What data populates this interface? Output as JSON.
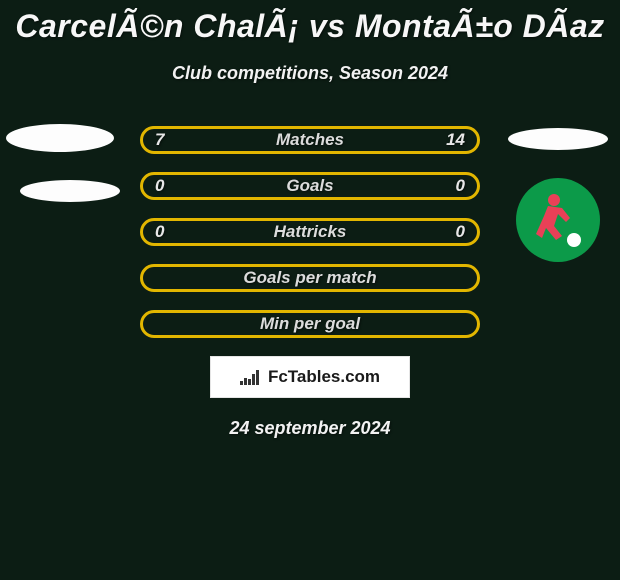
{
  "title": "CarcelÃ©n ChalÃ¡ vs MontaÃ±o DÃ­az",
  "subtitle": "Club competitions, Season 2024",
  "date": "24 september 2024",
  "colors": {
    "background": "#0c1d14",
    "title_color": "#f7f7f7",
    "subtitle_color": "#f2f2f2",
    "accent": "#e2b600",
    "pill_label_color": "#dcdcdc",
    "pill_value_color": "#e8e8e8",
    "logo_bg": "#ffffff",
    "logo_text": "#1a1a1a",
    "badge_bg": "#0c9a49",
    "badge_figure": "#e94057",
    "badge_figure2": "#ffffff"
  },
  "typography": {
    "title_fontsize": 32,
    "subtitle_fontsize": 18,
    "pill_label_fontsize": 17,
    "pill_value_fontsize": 17,
    "date_fontsize": 18
  },
  "layout": {
    "pill_width": 340,
    "pill_height": 28,
    "pill_border_width": 3,
    "row_gap": 18
  },
  "rows": [
    {
      "label": "Matches",
      "left": "7",
      "right": "14"
    },
    {
      "label": "Goals",
      "left": "0",
      "right": "0"
    },
    {
      "label": "Hattricks",
      "left": "0",
      "right": "0"
    },
    {
      "label": "Goals per match",
      "left": "",
      "right": ""
    },
    {
      "label": "Min per goal",
      "left": "",
      "right": ""
    }
  ],
  "branding": {
    "site_name": "FcTables.com"
  }
}
